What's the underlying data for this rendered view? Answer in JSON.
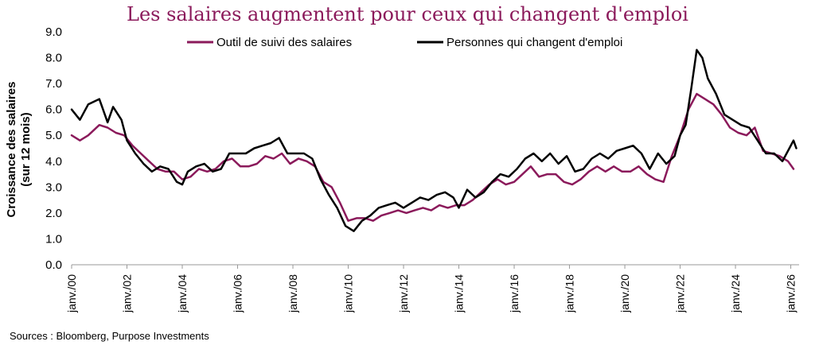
{
  "chart_data": {
    "type": "line",
    "title": "Les salaires augmentent pour ceux qui changent d'emploi",
    "ylabel_line1": "Croissance des salaires",
    "ylabel_line2": "(sur 12 mois)",
    "xlabel": "",
    "ylim": [
      0,
      9
    ],
    "yticks": [
      "0.0",
      "1.0",
      "2.0",
      "3.0",
      "4.0",
      "5.0",
      "6.0",
      "7.0",
      "8.0",
      "9.0"
    ],
    "xlim": [
      2000,
      2026.3
    ],
    "xtick_labels": [
      "janv./00",
      "janv./02",
      "janv./04",
      "janv./06",
      "janv./08",
      "janv./10",
      "janv./12",
      "janv./14",
      "janv./16",
      "janv./18",
      "janv./20",
      "janv./22",
      "janv./24",
      "janv./26"
    ],
    "legend_position": "top",
    "grid": false,
    "series": [
      {
        "name": "Outil de suivi des salaires",
        "color": "#8B1A5B",
        "x": [
          2000.0,
          2000.3,
          2000.6,
          2001.0,
          2001.3,
          2001.6,
          2001.9,
          2002.2,
          2002.5,
          2002.8,
          2003.1,
          2003.4,
          2003.7,
          2004.0,
          2004.3,
          2004.6,
          2004.9,
          2005.2,
          2005.5,
          2005.8,
          2006.1,
          2006.4,
          2006.7,
          2007.0,
          2007.3,
          2007.6,
          2007.9,
          2008.2,
          2008.5,
          2008.8,
          2009.1,
          2009.4,
          2009.7,
          2010.0,
          2010.3,
          2010.6,
          2010.9,
          2011.2,
          2011.5,
          2011.8,
          2012.1,
          2012.4,
          2012.7,
          2013.0,
          2013.3,
          2013.6,
          2013.9,
          2014.2,
          2014.5,
          2014.8,
          2015.1,
          2015.4,
          2015.7,
          2016.0,
          2016.3,
          2016.6,
          2016.9,
          2017.2,
          2017.5,
          2017.8,
          2018.1,
          2018.4,
          2018.7,
          2019.0,
          2019.3,
          2019.6,
          2019.9,
          2020.2,
          2020.5,
          2020.8,
          2021.1,
          2021.4,
          2021.7,
          2022.0,
          2022.3,
          2022.6,
          2022.9,
          2023.2,
          2023.5,
          2023.8,
          2024.1,
          2024.4,
          2024.7,
          2025.0,
          2025.3,
          2025.6,
          2025.9,
          2026.1
        ],
        "y": [
          5.0,
          4.8,
          5.0,
          5.4,
          5.3,
          5.1,
          5.0,
          4.6,
          4.3,
          4.0,
          3.7,
          3.6,
          3.6,
          3.3,
          3.4,
          3.7,
          3.6,
          3.7,
          4.0,
          4.1,
          3.8,
          3.8,
          3.9,
          4.2,
          4.1,
          4.3,
          3.9,
          4.1,
          4.0,
          3.8,
          3.2,
          3.0,
          2.4,
          1.7,
          1.8,
          1.8,
          1.7,
          1.9,
          2.0,
          2.1,
          2.0,
          2.1,
          2.2,
          2.1,
          2.3,
          2.2,
          2.3,
          2.3,
          2.5,
          2.8,
          3.1,
          3.3,
          3.1,
          3.2,
          3.5,
          3.8,
          3.4,
          3.5,
          3.5,
          3.2,
          3.1,
          3.3,
          3.6,
          3.8,
          3.6,
          3.8,
          3.6,
          3.6,
          3.8,
          3.5,
          3.3,
          3.2,
          4.2,
          5.0,
          6.0,
          6.6,
          6.4,
          6.2,
          5.8,
          5.3,
          5.1,
          5.0,
          5.3,
          4.4,
          4.3,
          4.2,
          4.0,
          3.7
        ]
      },
      {
        "name": "Personnes qui changent d'emploi",
        "color": "#000000",
        "x": [
          2000.0,
          2000.3,
          2000.6,
          2001.0,
          2001.3,
          2001.5,
          2001.8,
          2002.0,
          2002.3,
          2002.6,
          2002.9,
          2003.2,
          2003.5,
          2003.8,
          2004.0,
          2004.2,
          2004.5,
          2004.8,
          2005.1,
          2005.4,
          2005.7,
          2006.0,
          2006.3,
          2006.6,
          2006.9,
          2007.2,
          2007.5,
          2007.8,
          2008.1,
          2008.4,
          2008.7,
          2009.0,
          2009.3,
          2009.6,
          2009.9,
          2010.2,
          2010.5,
          2010.8,
          2011.1,
          2011.4,
          2011.7,
          2012.0,
          2012.3,
          2012.6,
          2012.9,
          2013.2,
          2013.5,
          2013.8,
          2014.0,
          2014.3,
          2014.6,
          2014.9,
          2015.2,
          2015.5,
          2015.8,
          2016.1,
          2016.4,
          2016.7,
          2017.0,
          2017.3,
          2017.6,
          2017.9,
          2018.2,
          2018.5,
          2018.8,
          2019.1,
          2019.4,
          2019.7,
          2020.0,
          2020.3,
          2020.6,
          2020.9,
          2021.2,
          2021.5,
          2021.8,
          2022.0,
          2022.2,
          2022.4,
          2022.6,
          2022.8,
          2023.0,
          2023.3,
          2023.6,
          2023.9,
          2024.2,
          2024.5,
          2024.8,
          2025.1,
          2025.4,
          2025.7,
          2025.95,
          2026.1,
          2026.2
        ],
        "y": [
          6.0,
          5.6,
          6.2,
          6.4,
          5.5,
          6.1,
          5.6,
          4.8,
          4.3,
          3.9,
          3.6,
          3.8,
          3.7,
          3.2,
          3.1,
          3.6,
          3.8,
          3.9,
          3.6,
          3.7,
          4.3,
          4.3,
          4.3,
          4.5,
          4.6,
          4.7,
          4.9,
          4.3,
          4.3,
          4.3,
          4.1,
          3.3,
          2.7,
          2.2,
          1.5,
          1.3,
          1.7,
          1.9,
          2.2,
          2.3,
          2.4,
          2.2,
          2.4,
          2.6,
          2.5,
          2.7,
          2.8,
          2.6,
          2.2,
          2.9,
          2.6,
          2.8,
          3.2,
          3.5,
          3.4,
          3.7,
          4.1,
          4.3,
          4.0,
          4.3,
          3.9,
          4.2,
          3.6,
          3.7,
          4.1,
          4.3,
          4.1,
          4.4,
          4.5,
          4.6,
          4.3,
          3.7,
          4.3,
          3.9,
          4.2,
          5.0,
          5.4,
          6.8,
          8.3,
          8.0,
          7.2,
          6.6,
          5.8,
          5.6,
          5.4,
          5.3,
          4.8,
          4.3,
          4.3,
          4.0,
          4.5,
          4.8,
          4.5
        ]
      }
    ]
  },
  "source": "Sources : Bloomberg, Purpose Investments"
}
